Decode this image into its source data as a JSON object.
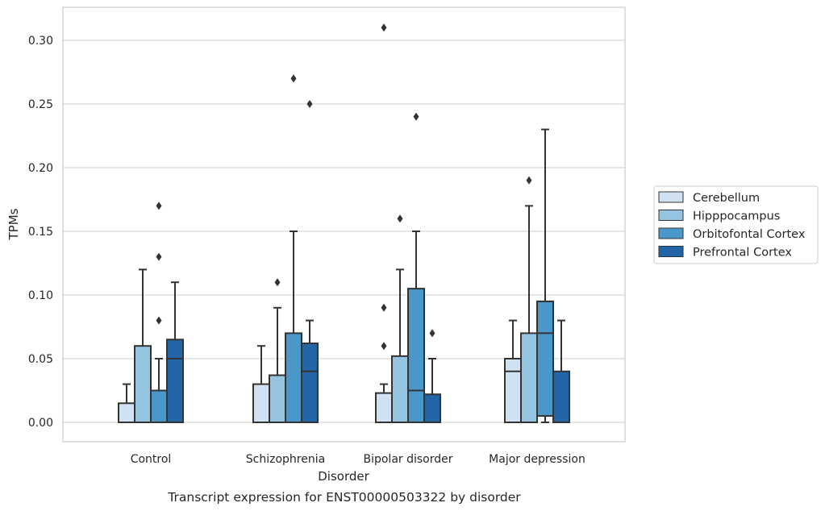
{
  "caption": "Transcript expression for ENST00000503322 by disorder",
  "chart_data": {
    "type": "box",
    "xlabel": "Disorder",
    "ylabel": "TPMs",
    "ylim": [
      -0.015,
      0.325
    ],
    "yticks": [
      "0.00",
      "0.05",
      "0.10",
      "0.15",
      "0.20",
      "0.25",
      "0.30"
    ],
    "ytick_values": [
      0,
      0.05,
      0.1,
      0.15,
      0.2,
      0.25,
      0.3
    ],
    "grid": "horizontal",
    "legend_position": "right",
    "categories": [
      "Control",
      "Schizophrenia",
      "Bipolar disorder",
      "Major depression"
    ],
    "series": [
      {
        "name": "Cerebellum",
        "color": "#d0e1f2",
        "boxes": [
          {
            "whisker_low": 0,
            "q1": 0,
            "median": 0,
            "q3": 0.015,
            "whisker_high": 0.03,
            "outliers": []
          },
          {
            "whisker_low": 0,
            "q1": 0,
            "median": 0,
            "q3": 0.03,
            "whisker_high": 0.06,
            "outliers": []
          },
          {
            "whisker_low": 0,
            "q1": 0,
            "median": 0,
            "q3": 0.023,
            "whisker_high": 0.03,
            "outliers": [
              0.06,
              0.09,
              0.31
            ]
          },
          {
            "whisker_low": 0,
            "q1": 0,
            "median": 0.04,
            "q3": 0.05,
            "whisker_high": 0.08,
            "outliers": []
          }
        ]
      },
      {
        "name": "Hipppocampus",
        "color": "#94c4df",
        "boxes": [
          {
            "whisker_low": 0,
            "q1": 0,
            "median": 0,
            "q3": 0.06,
            "whisker_high": 0.12,
            "outliers": []
          },
          {
            "whisker_low": 0,
            "q1": 0,
            "median": 0,
            "q3": 0.037,
            "whisker_high": 0.09,
            "outliers": [
              0.11
            ]
          },
          {
            "whisker_low": 0,
            "q1": 0,
            "median": 0,
            "q3": 0.052,
            "whisker_high": 0.12,
            "outliers": [
              0.16
            ]
          },
          {
            "whisker_low": 0,
            "q1": 0,
            "median": 0,
            "q3": 0.07,
            "whisker_high": 0.17,
            "outliers": [
              0.19
            ]
          }
        ]
      },
      {
        "name": "Orbitofontal Cortex",
        "color": "#4a98c9",
        "boxes": [
          {
            "whisker_low": 0,
            "q1": 0,
            "median": 0,
            "q3": 0.025,
            "whisker_high": 0.05,
            "outliers": [
              0.08,
              0.13,
              0.17
            ]
          },
          {
            "whisker_low": 0,
            "q1": 0,
            "median": 0,
            "q3": 0.07,
            "whisker_high": 0.15,
            "outliers": [
              0.27
            ]
          },
          {
            "whisker_low": 0,
            "q1": 0,
            "median": 0.025,
            "q3": 0.105,
            "whisker_high": 0.15,
            "outliers": [
              0.24
            ]
          },
          {
            "whisker_low": 0,
            "q1": 0.005,
            "median": 0.07,
            "q3": 0.095,
            "whisker_high": 0.23,
            "outliers": []
          }
        ]
      },
      {
        "name": "Prefrontal Cortex",
        "color": "#2366a8",
        "boxes": [
          {
            "whisker_low": 0,
            "q1": 0,
            "median": 0.05,
            "q3": 0.065,
            "whisker_high": 0.11,
            "outliers": []
          },
          {
            "whisker_low": 0,
            "q1": 0,
            "median": 0.04,
            "q3": 0.062,
            "whisker_high": 0.08,
            "outliers": [
              0.25
            ]
          },
          {
            "whisker_low": 0,
            "q1": 0,
            "median": 0,
            "q3": 0.022,
            "whisker_high": 0.05,
            "outliers": [
              0.07
            ]
          },
          {
            "whisker_low": 0,
            "q1": 0,
            "median": 0,
            "q3": 0.04,
            "whisker_high": 0.08,
            "outliers": []
          }
        ]
      }
    ]
  }
}
